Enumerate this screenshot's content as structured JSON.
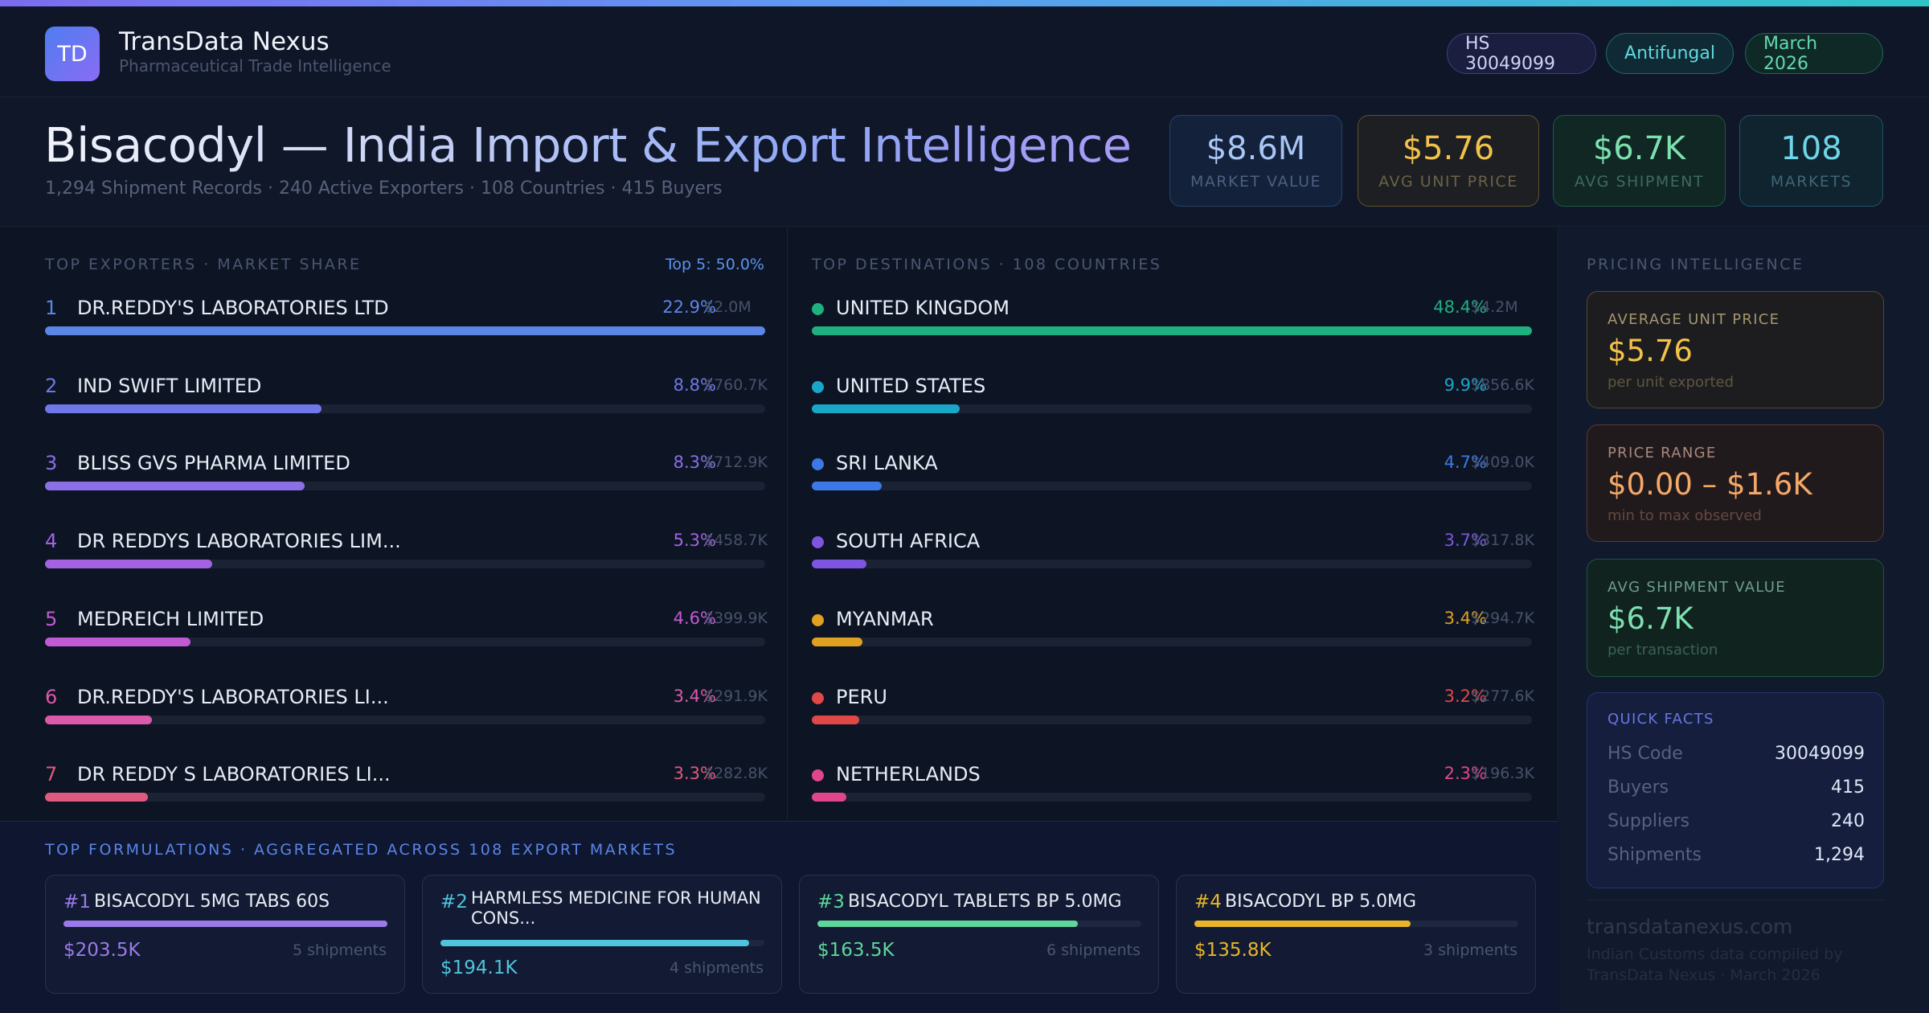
{
  "brand": {
    "logo_text": "TD",
    "name": "TransData Nexus",
    "tagline": "Pharmaceutical Trade Intelligence"
  },
  "pills": {
    "hs": "HS 30049099",
    "category": "Antifungal",
    "date": "March 2026"
  },
  "title": {
    "main": "Bisacodyl — India Import & Export Intelligence",
    "subtitle": "1,294 Shipment Records · 240 Active Exporters · 108 Countries · 415 Buyers"
  },
  "stats": [
    {
      "value": "$8.6M",
      "label": "MARKET VALUE"
    },
    {
      "value": "$5.76",
      "label": "AVG UNIT PRICE"
    },
    {
      "value": "$6.7K",
      "label": "AVG SHIPMENT"
    },
    {
      "value": "108",
      "label": "MARKETS"
    }
  ],
  "exporters": {
    "label": "TOP EXPORTERS · MARKET SHARE",
    "top5": "Top 5: 50.0%",
    "items": [
      {
        "rank": "1",
        "name": "DR.REDDY'S LABORATORIES LTD",
        "pct": "22.9%",
        "value": "$2.0M",
        "share": 100.0,
        "color": "#5b86e6"
      },
      {
        "rank": "2",
        "name": "IND SWIFT LIMITED",
        "pct": "8.8%",
        "value": "$760.7K",
        "share": 38.4,
        "color": "#6f78e8"
      },
      {
        "rank": "3",
        "name": "BLISS GVS PHARMA LIMITED",
        "pct": "8.3%",
        "value": "$712.9K",
        "share": 36.1,
        "color": "#8a6fe6"
      },
      {
        "rank": "4",
        "name": "DR REDDYS LABORATORIES LIM...",
        "pct": "5.3%",
        "value": "$458.7K",
        "share": 23.2,
        "color": "#a363e0"
      },
      {
        "rank": "5",
        "name": "MEDREICH LIMITED",
        "pct": "4.6%",
        "value": "$399.9K",
        "share": 20.2,
        "color": "#c25ad6"
      },
      {
        "rank": "6",
        "name": "DR.REDDY'S LABORATORIES LI...",
        "pct": "3.4%",
        "value": "$291.9K",
        "share": 14.8,
        "color": "#d95aa8"
      },
      {
        "rank": "7",
        "name": "DR REDDY S LABORATORIES LI...",
        "pct": "3.3%",
        "value": "$282.8K",
        "share": 14.3,
        "color": "#e0597e"
      }
    ]
  },
  "destinations": {
    "label": "TOP DESTINATIONS · 108 COUNTRIES",
    "items": [
      {
        "name": "UNITED KINGDOM",
        "pct": "48.4%",
        "value": "$4.2M",
        "share": 100.0,
        "color": "#1fb07f"
      },
      {
        "name": "UNITED STATES",
        "pct": "9.9%",
        "value": "$856.6K",
        "share": 20.5,
        "color": "#1aa6c8"
      },
      {
        "name": "SRI LANKA",
        "pct": "4.7%",
        "value": "$409.0K",
        "share": 9.7,
        "color": "#3b7ae6"
      },
      {
        "name": "SOUTH AFRICA",
        "pct": "3.7%",
        "value": "$317.8K",
        "share": 7.6,
        "color": "#7d55e0"
      },
      {
        "name": "MYANMAR",
        "pct": "3.4%",
        "value": "$294.7K",
        "share": 7.0,
        "color": "#e0a020"
      },
      {
        "name": "PERU",
        "pct": "3.2%",
        "value": "$277.6K",
        "share": 6.6,
        "color": "#e04848"
      },
      {
        "name": "NETHERLANDS",
        "pct": "2.3%",
        "value": "$196.3K",
        "share": 4.8,
        "color": "#e0468a"
      }
    ]
  },
  "formulations": {
    "label": "TOP FORMULATIONS · AGGREGATED ACROSS 108 EXPORT MARKETS",
    "items": [
      {
        "rank": "#1",
        "name": "BISACODYL 5MG TABS 60S",
        "value": "$203.5K",
        "shipments": "5 shipments",
        "share": 100.0,
        "color": "#9a7ae8"
      },
      {
        "rank": "#2",
        "name": "HARMLESS MEDICINE FOR HUMAN CONS...",
        "value": "$194.1K",
        "shipments": "4 shipments",
        "share": 95.4,
        "color": "#4fc4dc"
      },
      {
        "rank": "#3",
        "name": "BISACODYL TABLETS BP 5.0MG",
        "value": "$163.5K",
        "shipments": "6 shipments",
        "share": 80.3,
        "color": "#5fd69a"
      },
      {
        "rank": "#4",
        "name": "BISACODYL BP 5.0MG",
        "value": "$135.8K",
        "shipments": "3 shipments",
        "share": 66.7,
        "color": "#e8b52a"
      }
    ]
  },
  "pricing": {
    "label": "PRICING INTELLIGENCE",
    "avg_price": {
      "label": "AVERAGE UNIT PRICE",
      "value": "$5.76",
      "sub": "per unit exported"
    },
    "range": {
      "label": "PRICE RANGE",
      "value": "$0.00 – $1.6K",
      "sub": "min to max observed"
    },
    "avg_ship": {
      "label": "AVG SHIPMENT VALUE",
      "value": "$6.7K",
      "sub": "per transaction"
    },
    "facts": {
      "label": "QUICK FACTS",
      "rows": [
        {
          "k": "HS Code",
          "v": "30049099"
        },
        {
          "k": "Buyers",
          "v": "415"
        },
        {
          "k": "Suppliers",
          "v": "240"
        },
        {
          "k": "Shipments",
          "v": "1,294"
        }
      ]
    }
  },
  "footer": {
    "site": "transdatanexus.com",
    "note": "Indian Customs data compiled by TransData Nexus · March 2026"
  }
}
